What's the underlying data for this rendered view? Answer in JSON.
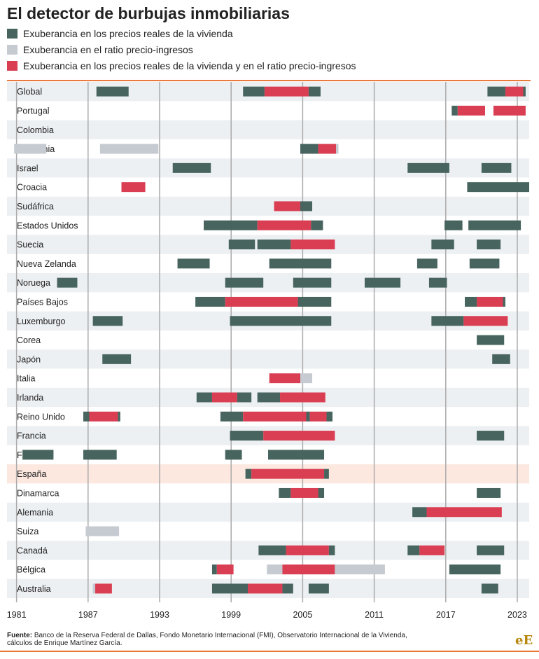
{
  "title": "El detector de burbujas inmobiliarias",
  "legend": [
    {
      "label": "Exuberancia en los precios reales de la vivienda",
      "color": "#47645f"
    },
    {
      "label": "Exuberancia en el ratio precio-ingresos",
      "color": "#c5cbd1"
    },
    {
      "label": "Exuberancia en los precios reales de la vivienda y en el ratio precio-ingresos",
      "color": "#d93e52"
    }
  ],
  "source": {
    "label": "Fuente:",
    "text": "Banco de la Reserva Federal de Dallas, Fondo Monetario Internacional (FMI), Observatorio Internacional de la Vivienda, cálculos de Enrique Martínez García."
  },
  "logo": "eE",
  "chart_data": {
    "type": "timeline",
    "xlim": [
      1980.2,
      2024.0
    ],
    "x_ticks": [
      1981,
      1987,
      1993,
      1999,
      2005,
      2011,
      2017,
      2023
    ],
    "highlight": "España",
    "colors": {
      "price": "#47645f",
      "ratio": "#c5cbd1",
      "both": "#d93e52",
      "band": "#edf0f3",
      "highlight": "#fde8e0",
      "gridline": "#aaaaaa"
    },
    "rows": [
      {
        "name": "Global",
        "periods": [
          [
            1987.7,
            1990.4,
            "price"
          ],
          [
            2000.0,
            2001.8,
            "price"
          ],
          [
            2001.8,
            2005.5,
            "both"
          ],
          [
            2005.5,
            2006.5,
            "price"
          ],
          [
            2020.5,
            2022.0,
            "price"
          ],
          [
            2022.0,
            2023.5,
            "both"
          ],
          [
            2023.5,
            2023.7,
            "price"
          ]
        ]
      },
      {
        "name": "Portugal",
        "periods": [
          [
            2017.5,
            2018.0,
            "price"
          ],
          [
            2018.0,
            2020.3,
            "both"
          ],
          [
            2021.0,
            2023.7,
            "both"
          ]
        ]
      },
      {
        "name": "Colombia",
        "periods": []
      },
      {
        "name": "Eslovenia",
        "periods": [
          [
            1980.8,
            1983.5,
            "ratio"
          ],
          [
            1988.0,
            1992.9,
            "ratio"
          ],
          [
            2004.8,
            2006.3,
            "price"
          ],
          [
            2006.3,
            2007.8,
            "both"
          ],
          [
            2007.8,
            2008.0,
            "ratio"
          ]
        ]
      },
      {
        "name": "Israel",
        "periods": [
          [
            1994.1,
            1997.3,
            "price"
          ],
          [
            2013.8,
            2017.3,
            "price"
          ],
          [
            2020.0,
            2022.5,
            "price"
          ]
        ]
      },
      {
        "name": "Croacia",
        "periods": [
          [
            1989.8,
            1991.8,
            "both"
          ],
          [
            2018.8,
            2024.0,
            "price"
          ]
        ]
      },
      {
        "name": "Sudáfrica",
        "periods": [
          [
            2002.6,
            2004.8,
            "both"
          ],
          [
            2004.8,
            2005.8,
            "price"
          ]
        ]
      },
      {
        "name": "Estados Unidos",
        "periods": [
          [
            1996.7,
            2001.2,
            "price"
          ],
          [
            2001.2,
            2005.7,
            "both"
          ],
          [
            2005.7,
            2006.7,
            "price"
          ],
          [
            2016.9,
            2018.4,
            "price"
          ],
          [
            2018.9,
            2023.3,
            "price"
          ]
        ]
      },
      {
        "name": "Suecia",
        "periods": [
          [
            1998.8,
            2001.0,
            "price"
          ],
          [
            2001.2,
            2004.0,
            "price"
          ],
          [
            2004.0,
            2007.7,
            "both"
          ],
          [
            2015.8,
            2017.7,
            "price"
          ],
          [
            2019.6,
            2021.6,
            "price"
          ]
        ]
      },
      {
        "name": "Nueva Zelanda",
        "periods": [
          [
            1994.5,
            1997.2,
            "price"
          ],
          [
            2002.2,
            2007.4,
            "price"
          ],
          [
            2014.6,
            2016.3,
            "price"
          ],
          [
            2019.0,
            2021.5,
            "price"
          ]
        ]
      },
      {
        "name": "Noruega",
        "periods": [
          [
            1984.4,
            1986.1,
            "price"
          ],
          [
            1998.5,
            2001.7,
            "price"
          ],
          [
            2004.2,
            2007.4,
            "price"
          ],
          [
            2010.2,
            2013.2,
            "price"
          ],
          [
            2015.6,
            2017.1,
            "price"
          ]
        ]
      },
      {
        "name": "Países Bajos",
        "periods": [
          [
            1996.0,
            1998.5,
            "price"
          ],
          [
            1998.5,
            2004.6,
            "both"
          ],
          [
            2004.6,
            2007.4,
            "price"
          ],
          [
            2018.6,
            2019.6,
            "price"
          ],
          [
            2019.6,
            2021.8,
            "both"
          ],
          [
            2021.8,
            2022.0,
            "price"
          ]
        ]
      },
      {
        "name": "Luxemburgo",
        "periods": [
          [
            1987.4,
            1989.9,
            "price"
          ],
          [
            1998.9,
            2007.4,
            "price"
          ],
          [
            2015.8,
            2018.5,
            "price"
          ],
          [
            2018.5,
            2022.2,
            "both"
          ]
        ]
      },
      {
        "name": "Corea",
        "periods": [
          [
            2019.6,
            2021.9,
            "price"
          ]
        ]
      },
      {
        "name": "Japón",
        "periods": [
          [
            1988.2,
            1990.6,
            "price"
          ],
          [
            2020.9,
            2022.4,
            "price"
          ]
        ]
      },
      {
        "name": "Italia",
        "periods": [
          [
            2002.2,
            2004.8,
            "both"
          ],
          [
            2004.8,
            2005.8,
            "ratio"
          ]
        ]
      },
      {
        "name": "Irlanda",
        "periods": [
          [
            1996.1,
            1997.4,
            "price"
          ],
          [
            1997.4,
            1999.5,
            "both"
          ],
          [
            1999.5,
            2000.7,
            "price"
          ],
          [
            2001.2,
            2003.1,
            "price"
          ],
          [
            2003.1,
            2006.9,
            "both"
          ]
        ]
      },
      {
        "name": "Reino Unido",
        "periods": [
          [
            1986.6,
            1987.1,
            "price"
          ],
          [
            1987.1,
            1989.5,
            "both"
          ],
          [
            1989.5,
            1989.7,
            "price"
          ],
          [
            1998.1,
            2000.0,
            "price"
          ],
          [
            2000.0,
            2005.3,
            "both"
          ],
          [
            2005.3,
            2005.6,
            "price"
          ],
          [
            2005.6,
            2007.0,
            "both"
          ],
          [
            2007.0,
            2007.5,
            "price"
          ]
        ]
      },
      {
        "name": "Francia",
        "periods": [
          [
            1998.9,
            2001.7,
            "price"
          ],
          [
            2001.7,
            2007.7,
            "both"
          ],
          [
            2019.6,
            2021.9,
            "price"
          ]
        ]
      },
      {
        "name": "Finlandia",
        "periods": [
          [
            1981.5,
            1984.1,
            "price"
          ],
          [
            1986.6,
            1989.4,
            "price"
          ],
          [
            1998.5,
            1999.9,
            "price"
          ],
          [
            2002.1,
            2006.8,
            "price"
          ]
        ]
      },
      {
        "name": "España",
        "periods": [
          [
            2000.2,
            2000.7,
            "price"
          ],
          [
            2000.7,
            2006.8,
            "both"
          ],
          [
            2006.8,
            2007.2,
            "price"
          ]
        ]
      },
      {
        "name": "Dinamarca",
        "periods": [
          [
            2003.0,
            2004.0,
            "price"
          ],
          [
            2004.0,
            2006.3,
            "both"
          ],
          [
            2006.3,
            2006.8,
            "price"
          ],
          [
            2019.6,
            2021.6,
            "price"
          ]
        ]
      },
      {
        "name": "Alemania",
        "periods": [
          [
            2014.2,
            2015.4,
            "price"
          ],
          [
            2015.4,
            2021.7,
            "both"
          ]
        ]
      },
      {
        "name": "Suiza",
        "periods": [
          [
            1986.8,
            1989.6,
            "ratio"
          ]
        ]
      },
      {
        "name": "Canadá",
        "periods": [
          [
            2001.3,
            2003.6,
            "price"
          ],
          [
            2003.6,
            2007.2,
            "both"
          ],
          [
            2007.2,
            2007.7,
            "price"
          ],
          [
            2013.8,
            2014.8,
            "price"
          ],
          [
            2014.8,
            2016.9,
            "both"
          ],
          [
            2019.6,
            2021.9,
            "price"
          ]
        ]
      },
      {
        "name": "Bélgica",
        "periods": [
          [
            1997.4,
            1997.8,
            "price"
          ],
          [
            1997.8,
            1999.2,
            "both"
          ],
          [
            2002.0,
            2003.3,
            "ratio"
          ],
          [
            2003.3,
            2007.7,
            "both"
          ],
          [
            2007.7,
            2011.9,
            "ratio"
          ],
          [
            2017.3,
            2021.6,
            "price"
          ]
        ]
      },
      {
        "name": "Australia",
        "periods": [
          [
            1987.4,
            1987.6,
            "ratio"
          ],
          [
            1987.6,
            1989.0,
            "both"
          ],
          [
            1997.4,
            2000.4,
            "price"
          ],
          [
            2000.4,
            2003.3,
            "both"
          ],
          [
            2003.3,
            2004.2,
            "price"
          ],
          [
            2005.5,
            2007.2,
            "price"
          ],
          [
            2020.0,
            2021.4,
            "price"
          ]
        ]
      }
    ]
  }
}
